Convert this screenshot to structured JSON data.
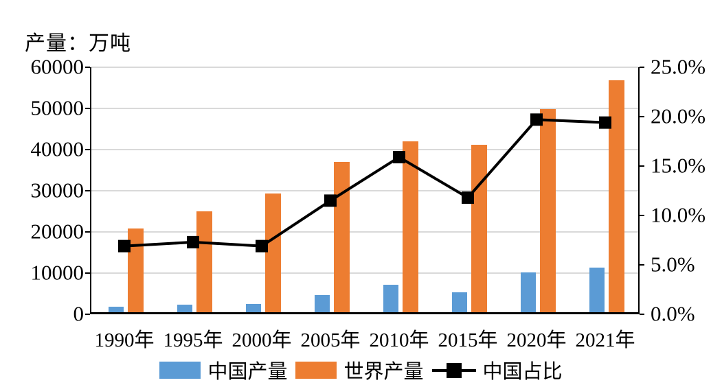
{
  "title": "产量：万吨",
  "chart_data": {
    "type": "combo-bar-line",
    "categories": [
      "1990年",
      "1995年",
      "2000年",
      "2005年",
      "2010年",
      "2015年",
      "2020年",
      "2021年"
    ],
    "series": [
      {
        "name": "中国产量",
        "type": "bar",
        "axis": "left",
        "color": "#5b9bd5",
        "values": [
          1400,
          1800,
          2000,
          4200,
          6600,
          4800,
          9700,
          10900
        ]
      },
      {
        "name": "世界产量",
        "type": "bar",
        "axis": "left",
        "color": "#ed7d31",
        "values": [
          20300,
          24500,
          28800,
          36500,
          41500,
          40600,
          49300,
          56300
        ]
      },
      {
        "name": "中国占比",
        "type": "line",
        "axis": "right",
        "color": "#000000",
        "marker": "square",
        "values_percent": [
          6.9,
          7.3,
          6.9,
          11.5,
          15.9,
          11.8,
          19.7,
          19.4
        ]
      }
    ],
    "left_axis": {
      "title": "产量：万吨",
      "min": 0,
      "max": 60000,
      "step": 10000,
      "tick_labels": [
        "0",
        "10000",
        "20000",
        "30000",
        "40000",
        "50000",
        "60000"
      ]
    },
    "right_axis": {
      "min": 0,
      "max": 25,
      "step": 5,
      "tick_labels": [
        "0.0%",
        "5.0%",
        "10.0%",
        "15.0%",
        "20.0%",
        "25.0%"
      ]
    },
    "grid": "horizontal-on",
    "legend_position": "bottom",
    "colors": {
      "china_bar": "#5b9bd5",
      "world_bar": "#ed7d31",
      "share_line": "#000000",
      "gridline": "#d9d9d9",
      "axis": "#000000"
    }
  }
}
